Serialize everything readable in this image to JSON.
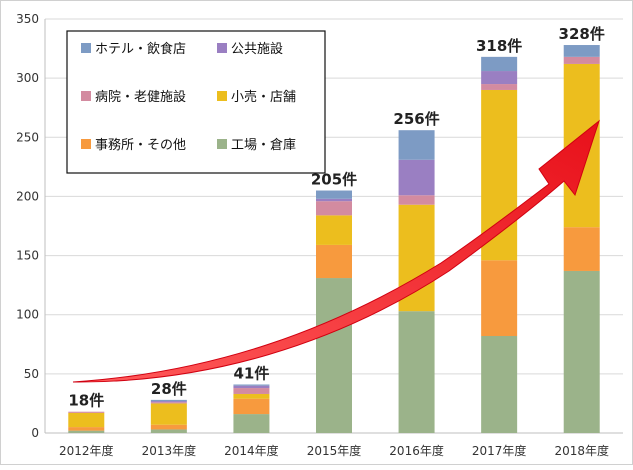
{
  "chart_data": {
    "type": "bar",
    "stacked": true,
    "categories": [
      "2012年度",
      "2013年度",
      "2014年度",
      "2015年度",
      "2016年度",
      "2017年度",
      "2018年度"
    ],
    "totals": [
      "18件",
      "28件",
      "41件",
      "205件",
      "256件",
      "318件",
      "328件"
    ],
    "total_values": [
      18,
      28,
      41,
      205,
      256,
      318,
      328
    ],
    "series": [
      {
        "name": "工場・倉庫",
        "color": "#9bb38a",
        "values": [
          2,
          3,
          16,
          131,
          103,
          82,
          137
        ]
      },
      {
        "name": "事務所・その他",
        "color": "#f79a3e",
        "values": [
          3,
          4,
          13,
          28,
          0,
          64,
          37
        ]
      },
      {
        "name": "小売・店舗",
        "color": "#ecbe1e",
        "values": [
          12,
          18,
          4,
          25,
          90,
          144,
          138
        ]
      },
      {
        "name": "病院・老健施設",
        "color": "#d38ba0",
        "values": [
          1,
          1,
          5,
          12,
          8,
          5,
          6
        ]
      },
      {
        "name": "公共施設",
        "color": "#9a7fc2",
        "values": [
          0,
          1,
          2,
          2,
          30,
          11,
          0
        ]
      },
      {
        "name": "ホテル・飲食店",
        "color": "#7d9bc4",
        "values": [
          0,
          1,
          1,
          7,
          25,
          12,
          10
        ]
      }
    ],
    "legend_order": [
      5,
      4,
      3,
      2,
      1,
      0
    ],
    "yticks": [
      0,
      50,
      100,
      150,
      200,
      250,
      300,
      350
    ],
    "ylim": [
      0,
      350
    ],
    "grid": true,
    "legend_position": "top-left",
    "annotation": "red upward arrow indicating growth trend"
  }
}
